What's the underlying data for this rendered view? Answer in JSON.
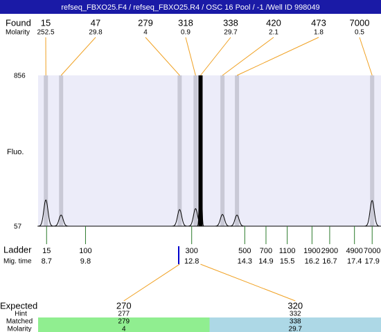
{
  "chart_data": {
    "type": "electropherogram",
    "title": "refseq_FBXO25.F4 / refseq_FBXO25.R4 / OSC 16 Pool / -1 /Well ID 998049",
    "found_label": "Found",
    "molarity_label": "Molarity",
    "y_label": "Fluo.",
    "ladder_label": "Ladder",
    "time_label": "Mig. time",
    "found": [
      15,
      47,
      279,
      318,
      338,
      420,
      473,
      7000
    ],
    "molarity": [
      252.5,
      29.8,
      4,
      0.9,
      29.7,
      2.1,
      1.8,
      0.5
    ],
    "peak_times": [
      8.68,
      9.11,
      12.46,
      12.91,
      13.05,
      13.67,
      14.08,
      17.9
    ],
    "peak_heights": [
      196,
      116,
      145,
      150,
      856,
      119,
      116,
      193
    ],
    "ylim": [
      57,
      856
    ],
    "yticks": [
      57,
      856
    ],
    "xlim": [
      8.46,
      18.15
    ],
    "ladder": [
      15,
      100,
      300,
      500,
      700,
      1100,
      1900,
      2900,
      4900,
      7000
    ],
    "ladder_times": [
      8.7,
      9.8,
      12.8,
      14.3,
      14.9,
      15.5,
      16.2,
      16.7,
      17.4,
      17.9
    ],
    "expected_label": "Expected",
    "hint_label": "Hint",
    "matched_label": "Matched",
    "expected": [
      270,
      320
    ],
    "hint": [
      277,
      332
    ],
    "matched": [
      279,
      338
    ],
    "matched_molarity": [
      4,
      29.7
    ],
    "matched_colors": [
      "#90ee90",
      "#add8e6"
    ]
  }
}
